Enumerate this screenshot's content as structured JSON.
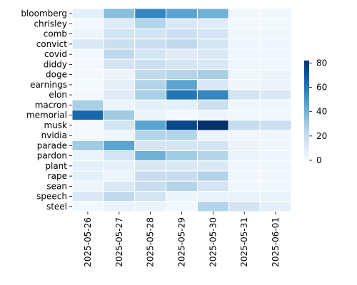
{
  "chart_data": {
    "type": "heatmap",
    "title": "",
    "xlabel": "",
    "ylabel": "",
    "rows": [
      "bloomberg",
      "chrisley",
      "comb",
      "convict",
      "covid",
      "diddy",
      "doge",
      "earnings",
      "elon",
      "macron",
      "memorial",
      "musk",
      "nvidia",
      "parade",
      "pardon",
      "plant",
      "rape",
      "sean",
      "speech",
      "steel"
    ],
    "columns": [
      "2025-05-26",
      "2025-05-27",
      "2025-05-28",
      "2025-05-29",
      "2025-05-30",
      "2025-05-31",
      "2025-06-01"
    ],
    "values": [
      [
        8,
        35,
        55,
        45,
        40,
        3,
        3
      ],
      [
        2,
        10,
        25,
        12,
        10,
        2,
        2
      ],
      [
        4,
        15,
        15,
        18,
        14,
        3,
        3
      ],
      [
        12,
        18,
        18,
        22,
        14,
        3,
        3
      ],
      [
        2,
        22,
        15,
        10,
        12,
        3,
        3
      ],
      [
        2,
        15,
        18,
        15,
        12,
        3,
        3
      ],
      [
        2,
        5,
        22,
        25,
        28,
        3,
        5
      ],
      [
        2,
        8,
        25,
        45,
        12,
        3,
        5
      ],
      [
        2,
        10,
        28,
        60,
        55,
        15,
        12
      ],
      [
        28,
        5,
        8,
        8,
        18,
        3,
        3
      ],
      [
        65,
        30,
        5,
        2,
        4,
        3,
        3
      ],
      [
        2,
        15,
        45,
        75,
        82,
        20,
        18
      ],
      [
        2,
        3,
        25,
        25,
        5,
        3,
        3
      ],
      [
        30,
        45,
        15,
        15,
        15,
        5,
        3
      ],
      [
        5,
        15,
        40,
        30,
        25,
        5,
        3
      ],
      [
        8,
        8,
        12,
        12,
        12,
        3,
        3
      ],
      [
        8,
        5,
        20,
        20,
        25,
        3,
        3
      ],
      [
        4,
        12,
        20,
        25,
        15,
        3,
        3
      ],
      [
        12,
        22,
        15,
        4,
        6,
        6,
        6
      ],
      [
        2,
        5,
        5,
        2,
        25,
        15,
        8
      ]
    ],
    "colorbar": {
      "min": 0,
      "max": 82,
      "ticks": [
        0,
        20,
        40,
        60,
        80
      ]
    }
  }
}
